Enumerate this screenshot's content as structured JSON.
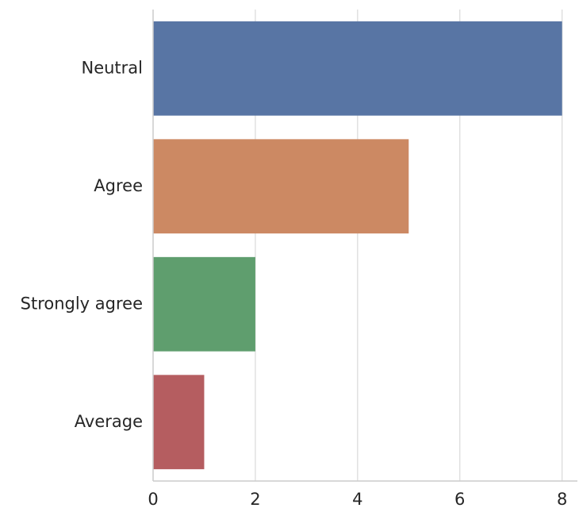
{
  "chart_data": {
    "type": "bar",
    "orientation": "horizontal",
    "categories": [
      "Neutral",
      "Agree",
      "Strongly agree",
      "Average"
    ],
    "values": [
      8,
      5,
      2,
      1
    ],
    "colors": [
      "#5875a4",
      "#cc8963",
      "#5f9e6e",
      "#b55d60"
    ],
    "xlim": [
      0,
      8.3
    ],
    "xticks": [
      0,
      2,
      4,
      6,
      8
    ],
    "xtick_labels": [
      "0",
      "2",
      "4",
      "6",
      "8"
    ],
    "title": "",
    "xlabel": "",
    "ylabel": "",
    "grid": "vertical",
    "legend": "none"
  },
  "style": {
    "grid_color": "#dcdcdc",
    "spine_color": "#cccccc",
    "text_color": "#262626"
  }
}
